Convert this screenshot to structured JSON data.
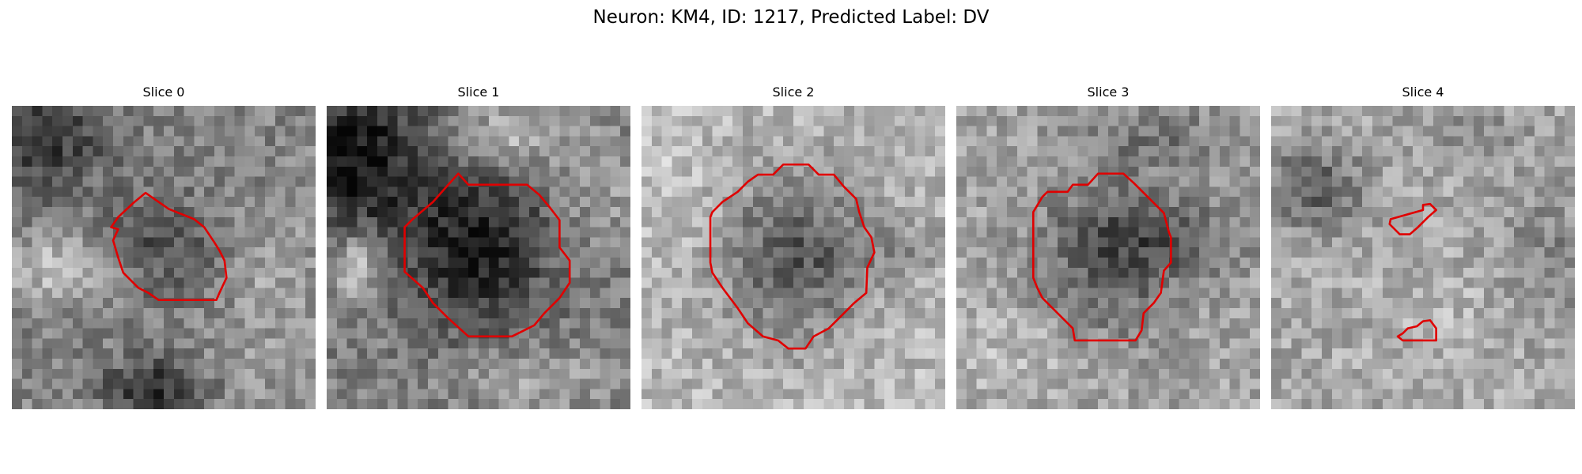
{
  "figure": {
    "title": "Neuron: KM4, ID: 1217, Predicted Label: DV"
  },
  "colors": {
    "contour": "#e00000",
    "colormap": "grayscale"
  },
  "panels": [
    {
      "title": "Slice 0"
    },
    {
      "title": "Slice 1"
    },
    {
      "title": "Slice 2"
    },
    {
      "title": "Slice 3"
    },
    {
      "title": "Slice 4"
    }
  ]
}
